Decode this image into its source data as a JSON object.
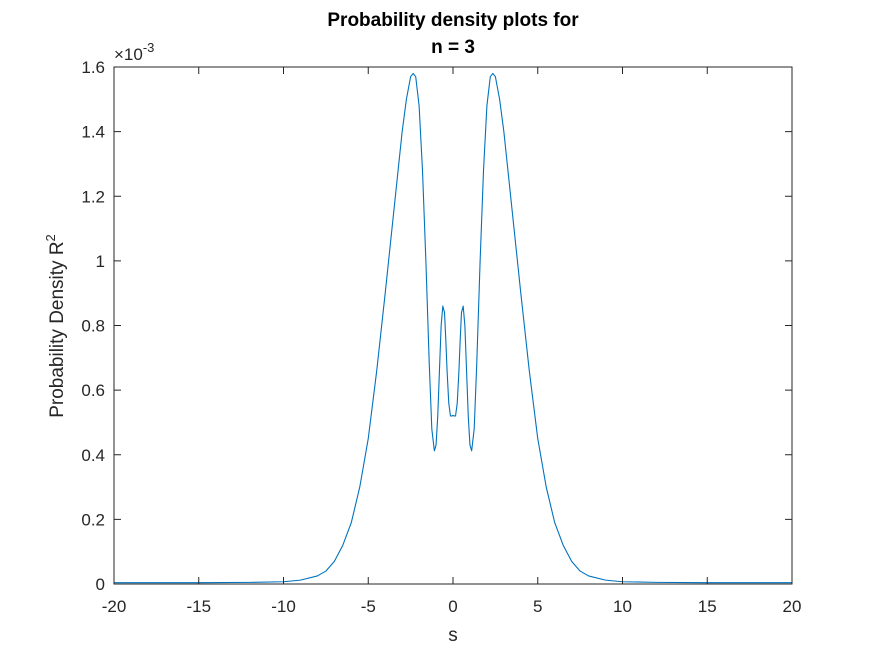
{
  "figure": {
    "background": "#ffffff"
  },
  "chart_data": {
    "type": "line",
    "title": [
      "Probability density plots for",
      "n = 3"
    ],
    "xlabel": "s",
    "ylabel": "Probability Density R",
    "ylabel_superscript": "2",
    "y_exponent_label": "×10",
    "y_exponent_power": "-3",
    "xlim": [
      -20,
      20
    ],
    "ylim": [
      0,
      0.0016
    ],
    "xticks": [
      -20,
      -15,
      -10,
      -5,
      0,
      5,
      10,
      15,
      20
    ],
    "xtick_labels": [
      "-20",
      "-15",
      "-10",
      "-5",
      "0",
      "5",
      "10",
      "15",
      "20"
    ],
    "yticks": [
      0,
      0.0002,
      0.0004,
      0.0006,
      0.0008,
      0.001,
      0.0012,
      0.0014,
      0.0016
    ],
    "ytick_labels": [
      "0",
      "0.2",
      "0.4",
      "0.6",
      "0.8",
      "1",
      "1.2",
      "1.4",
      "1.6"
    ],
    "grid": false,
    "box": true,
    "line_color": "#0072bd",
    "axis_color": "#262626",
    "series": [
      {
        "x": [
          -20,
          -15,
          -12,
          -10,
          -9,
          -8,
          -7.5,
          -7,
          -6.5,
          -6,
          -5.5,
          -5,
          -4.5,
          -4,
          -3.5,
          -3,
          -2.75,
          -2.5,
          -2.35,
          -2.2,
          -2,
          -1.8,
          -1.6,
          -1.4,
          -1.25,
          -1.1,
          -1.0,
          -0.9,
          -0.8,
          -0.7,
          -0.6,
          -0.5,
          -0.42,
          -0.35,
          -0.25,
          -0.15,
          -0.05,
          0,
          0.05,
          0.15,
          0.25,
          0.35,
          0.42,
          0.5,
          0.6,
          0.7,
          0.8,
          0.9,
          1.0,
          1.1,
          1.25,
          1.4,
          1.6,
          1.8,
          2,
          2.2,
          2.35,
          2.5,
          2.75,
          3,
          3.5,
          4,
          4.5,
          5,
          5.5,
          6,
          6.5,
          7,
          7.5,
          8,
          9,
          10,
          12,
          15,
          20
        ],
        "y": [
          4e-06,
          4e-06,
          5e-06,
          7e-06,
          1.2e-05,
          2.5e-05,
          4e-05,
          7e-05,
          0.00012,
          0.00019,
          0.0003,
          0.00045,
          0.00066,
          0.0009,
          0.00115,
          0.0014,
          0.0015,
          0.00157,
          0.00158,
          0.00157,
          0.00148,
          0.00128,
          0.001,
          0.00068,
          0.00048,
          0.000412,
          0.00043,
          0.00052,
          0.00066,
          0.0008,
          0.00086,
          0.00084,
          0.00075,
          0.00066,
          0.00056,
          0.00052,
          0.00052,
          0.000522,
          0.00052,
          0.00052,
          0.00056,
          0.00066,
          0.00075,
          0.00084,
          0.00086,
          0.0008,
          0.00066,
          0.00052,
          0.00043,
          0.000412,
          0.00048,
          0.00068,
          0.001,
          0.00128,
          0.00148,
          0.00157,
          0.00158,
          0.00157,
          0.0015,
          0.0014,
          0.00115,
          0.0009,
          0.00066,
          0.00045,
          0.0003,
          0.00019,
          0.00012,
          7e-05,
          4e-05,
          2.5e-05,
          1.2e-05,
          7e-06,
          5e-06,
          4e-06,
          4e-06
        ]
      }
    ]
  }
}
